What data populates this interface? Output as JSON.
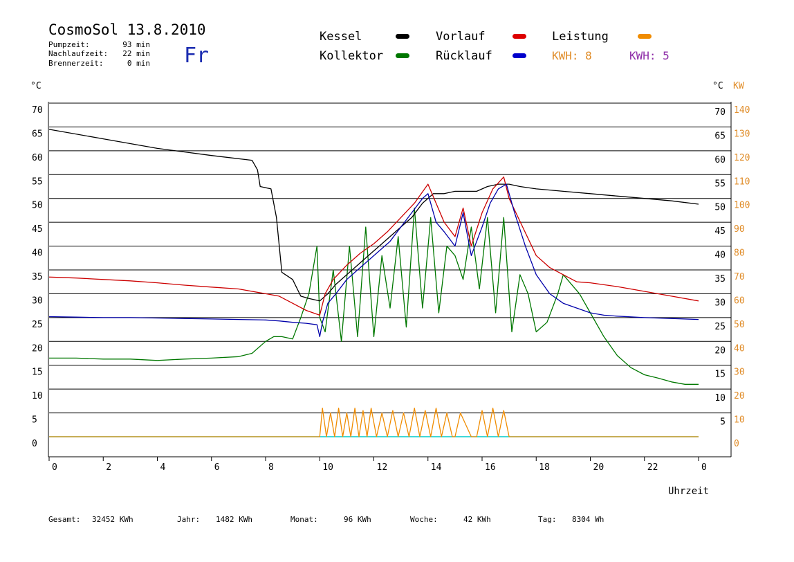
{
  "header": {
    "title": "CosmoSol 13.8.2010",
    "day": "Fr",
    "info": [
      {
        "label": "Pumpzeit:",
        "value": "93 min"
      },
      {
        "label": "Nachlaufzeit:",
        "value": "22 min"
      },
      {
        "label": "Brennerzeit:",
        "value": "0 min"
      }
    ]
  },
  "legend": {
    "items": [
      {
        "name": "Kessel",
        "color": "#000000"
      },
      {
        "name": "Vorlauf",
        "color": "#dd0000"
      },
      {
        "name": "Leistung",
        "color": "#f08c00"
      },
      {
        "name": "Kollektor",
        "color": "#007700"
      },
      {
        "name": "Rücklauf",
        "color": "#0000cc"
      }
    ],
    "kwh": [
      {
        "text": "KWH: 8",
        "color": "#e08c28"
      },
      {
        "text": "KWH: 5",
        "color": "#8e2ea8"
      }
    ]
  },
  "footer": {
    "stats": [
      {
        "label": "Gesamt:",
        "value": "32452 KWh"
      },
      {
        "label": "Jahr:",
        "value": "1482 KWh"
      },
      {
        "label": "Monat:",
        "value": "96 KWh"
      },
      {
        "label": "Woche:",
        "value": "42 KWh"
      },
      {
        "label": "Tag:",
        "value": "8304 Wh"
      }
    ]
  },
  "chart_data": {
    "type": "line",
    "xlabel": "Uhrzeit",
    "ylabel_left": "°C",
    "ylabel_right": "°C",
    "ylabel_right2": "KW",
    "xlim": [
      0,
      24
    ],
    "ylim": [
      0,
      70
    ],
    "x_ticks": [
      "0",
      "2",
      "4",
      "6",
      "8",
      "10",
      "12",
      "14",
      "16",
      "18",
      "20",
      "22",
      "0"
    ],
    "y_ticks": [
      0,
      5,
      10,
      15,
      20,
      25,
      30,
      35,
      40,
      45,
      50,
      55,
      60,
      65,
      70
    ],
    "y_ticks_right_kw": [
      0,
      10,
      20,
      30,
      40,
      50,
      60,
      70,
      80,
      90,
      100,
      110,
      120,
      130,
      140
    ],
    "grid": true,
    "colors": {
      "kessel": "#000000",
      "vorlauf": "#cc0000",
      "ruecklauf": "#0000aa",
      "kollektor": "#007700",
      "leistung": "#f08c00",
      "kwh_line": "#8e2ea8",
      "baseline": "#00cccc",
      "right_axis_kw": "#e08c28"
    },
    "series": [
      {
        "name": "Kessel",
        "key": "kessel",
        "x": [
          0,
          2,
          4,
          6,
          7.5,
          7.7,
          7.8,
          8.2,
          8.4,
          8.6,
          9.0,
          9.3,
          9.6,
          10.0,
          10.3,
          10.6,
          11.0,
          11.4,
          11.8,
          12.2,
          12.6,
          13.0,
          13.4,
          13.8,
          14.2,
          14.6,
          15.0,
          15.4,
          15.8,
          16.2,
          16.6,
          17.0,
          17.4,
          18.0,
          19.0,
          20.0,
          21.0,
          22.0,
          23.0,
          24.0
        ],
        "y": [
          64.5,
          62.5,
          60.5,
          59,
          58,
          56,
          52.5,
          52,
          46,
          34.5,
          33,
          29.5,
          29,
          28.5,
          30,
          32,
          34,
          36,
          38,
          40,
          42,
          44,
          46,
          49,
          51,
          51,
          51.5,
          51.5,
          51.5,
          52.5,
          53,
          53,
          52.5,
          52,
          51.5,
          51,
          50.5,
          50,
          49.5,
          48.8
        ]
      },
      {
        "name": "Vorlauf",
        "key": "vorlauf",
        "x": [
          0,
          1,
          2,
          3,
          4,
          5,
          6,
          7,
          8,
          8.5,
          9.0,
          9.5,
          10.0,
          10.2,
          10.5,
          11.0,
          11.5,
          12.0,
          12.5,
          13.0,
          13.5,
          14.0,
          14.3,
          14.6,
          15.0,
          15.3,
          15.6,
          16.0,
          16.4,
          16.8,
          17.0,
          17.5,
          18.0,
          18.5,
          19.0,
          19.5,
          20.0,
          21.0,
          22.0,
          23.0,
          24.0
        ],
        "y": [
          33.5,
          33.3,
          33,
          32.7,
          32.3,
          31.8,
          31.4,
          31,
          30,
          29.5,
          28,
          26.5,
          25.5,
          30,
          33,
          36,
          38.5,
          40.5,
          43,
          46,
          49,
          53,
          49,
          45,
          42,
          48,
          40,
          47,
          52,
          54.5,
          50,
          44,
          38,
          35.5,
          34,
          32.5,
          32.3,
          31.5,
          30.5,
          29.5,
          28.5
        ]
      },
      {
        "name": "Rücklauf",
        "key": "ruecklauf",
        "x": [
          0,
          1,
          2,
          3,
          4,
          5,
          6,
          7,
          8,
          8.5,
          9.0,
          9.5,
          9.9,
          10.0,
          10.1,
          10.3,
          10.6,
          11.0,
          11.4,
          11.8,
          12.2,
          12.6,
          13.0,
          13.4,
          13.8,
          14.0,
          14.3,
          14.6,
          15.0,
          15.3,
          15.6,
          16.0,
          16.3,
          16.6,
          16.9,
          17.2,
          17.6,
          18.0,
          18.5,
          19.0,
          19.5,
          20.0,
          20.5,
          21.0,
          22.0,
          23.0,
          24.0
        ],
        "y": [
          25.2,
          25.1,
          25,
          25,
          24.9,
          24.8,
          24.7,
          24.6,
          24.5,
          24.3,
          24,
          23.8,
          23.5,
          21,
          24,
          28,
          30,
          33,
          35,
          37,
          39,
          41,
          44,
          47,
          50,
          51,
          45,
          43,
          40,
          47,
          38,
          44,
          49,
          52,
          53,
          47,
          40,
          34,
          30,
          28,
          27,
          26,
          25.5,
          25.3,
          25,
          24.8,
          24.6
        ]
      },
      {
        "name": "Kollektor",
        "key": "kollektor",
        "x": [
          0,
          1,
          2,
          3,
          4,
          5,
          6,
          7,
          7.5,
          8.0,
          8.3,
          8.6,
          9.0,
          9.3,
          9.6,
          9.9,
          10.0,
          10.2,
          10.5,
          10.8,
          11.1,
          11.4,
          11.7,
          12.0,
          12.3,
          12.6,
          12.9,
          13.2,
          13.5,
          13.8,
          14.1,
          14.4,
          14.7,
          15.0,
          15.3,
          15.6,
          15.9,
          16.2,
          16.5,
          16.8,
          17.1,
          17.4,
          17.7,
          18.0,
          18.4,
          18.8,
          19.0,
          19.3,
          19.6,
          20.0,
          20.5,
          21.0,
          21.5,
          22.0,
          22.5,
          23.0,
          23.5,
          24.0
        ],
        "y": [
          16.5,
          16.5,
          16.3,
          16.3,
          16,
          16.3,
          16.5,
          16.8,
          17.5,
          20,
          21,
          21,
          20.5,
          25,
          30,
          40,
          25,
          22,
          35,
          20,
          40,
          21,
          44,
          21,
          38,
          27,
          42,
          23,
          48,
          27,
          46,
          26,
          40,
          38,
          33,
          44,
          31,
          46,
          26,
          46,
          22,
          34,
          30,
          22,
          24,
          30,
          34,
          32,
          30,
          26,
          21,
          17,
          14.5,
          13,
          12.3,
          11.5,
          11,
          11
        ]
      },
      {
        "name": "Leistung",
        "key": "leistung",
        "x": [
          0,
          10.0,
          10.1,
          10.25,
          10.4,
          10.55,
          10.7,
          10.85,
          11.0,
          11.15,
          11.3,
          11.45,
          11.6,
          11.75,
          11.9,
          12.1,
          12.3,
          12.5,
          12.7,
          12.9,
          13.1,
          13.3,
          13.5,
          13.7,
          13.9,
          14.1,
          14.3,
          14.5,
          14.7,
          14.9,
          15.0,
          15.2,
          15.6,
          15.8,
          16.0,
          16.2,
          16.4,
          16.6,
          16.8,
          17.0,
          17.2,
          24.0
        ],
        "y": [
          0,
          0,
          6,
          0,
          5,
          0,
          6,
          0,
          5,
          0,
          6,
          0,
          5.5,
          0,
          6,
          0,
          5,
          0,
          5.5,
          0,
          5,
          0,
          6,
          0,
          5.5,
          0,
          6,
          0,
          5,
          0,
          0,
          5,
          0,
          0,
          5.5,
          0,
          6,
          0,
          5.5,
          0,
          0,
          0
        ]
      }
    ]
  }
}
